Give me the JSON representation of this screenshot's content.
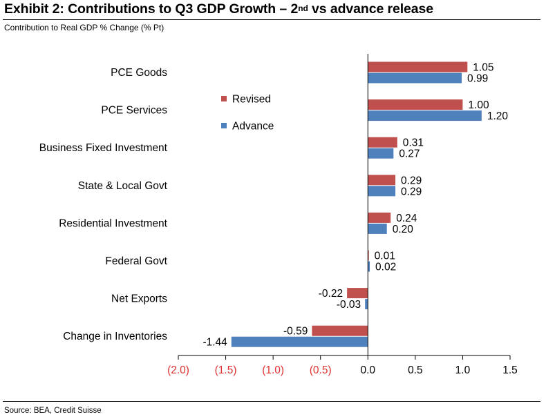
{
  "header": {
    "title_main": "Exhibit 2: Contributions to Q3 GDP Growth – 2",
    "title_sup": "nd",
    "title_tail": " vs advance release",
    "subtitle": "Contribution to Real GDP % Change (% Pt)"
  },
  "footer": {
    "source": "Source: BEA, Credit Suisse"
  },
  "colors": {
    "revised": "#C0504D",
    "advance": "#4F81BD",
    "negative_tick": "#E03030"
  },
  "chart_data": {
    "type": "bar",
    "orientation": "horizontal",
    "categories": [
      "PCE Goods",
      "PCE Services",
      "Business Fixed Investment",
      "State & Local Govt",
      "Residential Investment",
      "Federal Govt",
      "Net Exports",
      "Change in Inventories"
    ],
    "series": [
      {
        "name": "Revised",
        "values": [
          1.05,
          1.0,
          0.31,
          0.29,
          0.24,
          0.01,
          -0.22,
          -0.59
        ],
        "labels": [
          "1.05",
          "1.00",
          "0.31",
          "0.29",
          "0.24",
          "0.01",
          "-0.22",
          "-0.59"
        ]
      },
      {
        "name": "Advance",
        "values": [
          0.99,
          1.2,
          0.27,
          0.29,
          0.2,
          0.02,
          -0.03,
          -1.44
        ],
        "labels": [
          "0.99",
          "1.20",
          "0.27",
          "0.29",
          "0.20",
          "0.02",
          "-0.03",
          "-1.44"
        ]
      }
    ],
    "xlim": [
      -2.0,
      1.5
    ],
    "xticks": [
      -2.0,
      -1.5,
      -1.0,
      -0.5,
      0.0,
      0.5,
      1.0,
      1.5
    ],
    "xtick_labels": [
      "(2.0)",
      "(1.5)",
      "(1.0)",
      "(0.5)",
      "0.0",
      "0.5",
      "1.0",
      "1.5"
    ],
    "grid": false,
    "legend_position": "upper-middle"
  }
}
